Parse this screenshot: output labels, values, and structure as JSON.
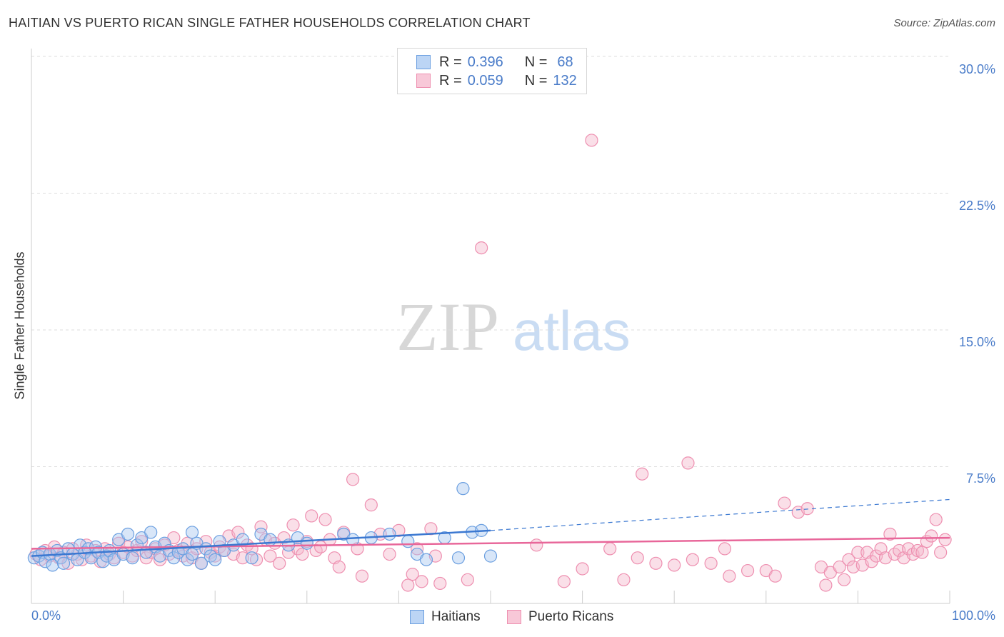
{
  "title": "HAITIAN VS PUERTO RICAN SINGLE FATHER HOUSEHOLDS CORRELATION CHART",
  "source": "Source: ZipAtlas.com",
  "watermark": {
    "zip": "ZIP",
    "atlas": "atlas"
  },
  "colors": {
    "blue": "#6b9fe0",
    "blue_fill": "#a8c8f0",
    "pink": "#ee8fb0",
    "pink_fill": "#f5b8cd",
    "blue_line": "#3b78d1",
    "pink_line": "#e8679a",
    "tick": "#4a7cc9"
  },
  "legend_top": {
    "rows": [
      {
        "r_label": "R =",
        "r_value": "0.396",
        "n_label": "N =",
        "n_value": "68"
      },
      {
        "r_label": "R =",
        "r_value": "0.059",
        "n_label": "N =",
        "n_value": "132"
      }
    ]
  },
  "legend_bottom": [
    "Haitians",
    "Puerto Ricans"
  ],
  "chart_data": {
    "type": "scatter",
    "title": "HAITIAN VS PUERTO RICAN SINGLE FATHER HOUSEHOLDS CORRELATION CHART",
    "xlabel": "",
    "ylabel": "Single Father Households",
    "xlim": [
      0,
      100
    ],
    "ylim": [
      0,
      30
    ],
    "x_tick_labels": [
      "0.0%",
      "100.0%"
    ],
    "y_ticks": [
      7.5,
      15.0,
      22.5,
      30.0
    ],
    "y_tick_labels": [
      "7.5%",
      "15.0%",
      "22.5%",
      "30.0%"
    ],
    "grid": true,
    "series": [
      {
        "name": "Haitians",
        "r": 0.396,
        "n": 68,
        "trend": {
          "x0": 0,
          "y0": 2.6,
          "x1": 50,
          "y1": 4.0,
          "dashed_to_x": 100,
          "dashed_to_y": 5.7
        },
        "points": [
          [
            0.3,
            2.5
          ],
          [
            0.8,
            2.6
          ],
          [
            1.2,
            2.8
          ],
          [
            1.5,
            2.3
          ],
          [
            2.0,
            2.7
          ],
          [
            2.3,
            2.1
          ],
          [
            2.8,
            2.9
          ],
          [
            3.2,
            2.5
          ],
          [
            3.5,
            2.2
          ],
          [
            4.0,
            3.0
          ],
          [
            4.5,
            2.7
          ],
          [
            5.0,
            2.4
          ],
          [
            5.3,
            3.2
          ],
          [
            5.8,
            2.8
          ],
          [
            6.2,
            3.0
          ],
          [
            6.5,
            2.5
          ],
          [
            7.0,
            3.1
          ],
          [
            7.3,
            2.8
          ],
          [
            7.8,
            2.3
          ],
          [
            8.2,
            2.6
          ],
          [
            8.5,
            2.9
          ],
          [
            9.0,
            2.4
          ],
          [
            9.5,
            3.5
          ],
          [
            10.0,
            2.7
          ],
          [
            10.5,
            3.8
          ],
          [
            11.0,
            2.5
          ],
          [
            11.5,
            3.2
          ],
          [
            12.0,
            3.6
          ],
          [
            12.5,
            2.8
          ],
          [
            13.0,
            3.9
          ],
          [
            13.5,
            3.1
          ],
          [
            14.0,
            2.6
          ],
          [
            14.5,
            3.3
          ],
          [
            15.0,
            2.9
          ],
          [
            15.5,
            2.5
          ],
          [
            16.0,
            2.8
          ],
          [
            16.5,
            3.0
          ],
          [
            17.0,
            2.4
          ],
          [
            17.5,
            2.7
          ],
          [
            18.0,
            3.3
          ],
          [
            18.5,
            2.2
          ],
          [
            19.0,
            3.0
          ],
          [
            19.5,
            2.6
          ],
          [
            20.0,
            2.4
          ],
          [
            20.5,
            3.4
          ],
          [
            21.0,
            2.9
          ],
          [
            22.0,
            3.2
          ],
          [
            23.0,
            3.5
          ],
          [
            24.0,
            2.5
          ],
          [
            25.0,
            3.8
          ],
          [
            26.0,
            3.5
          ],
          [
            28.0,
            3.2
          ],
          [
            29.0,
            3.6
          ],
          [
            30.0,
            3.3
          ],
          [
            34.0,
            3.8
          ],
          [
            35.0,
            3.5
          ],
          [
            37.0,
            3.6
          ],
          [
            39.0,
            3.8
          ],
          [
            41.0,
            3.4
          ],
          [
            42.0,
            2.7
          ],
          [
            43.0,
            2.4
          ],
          [
            45.0,
            3.6
          ],
          [
            46.5,
            2.5
          ],
          [
            47.0,
            6.3
          ],
          [
            48.0,
            3.9
          ],
          [
            49.0,
            4.0
          ],
          [
            50.0,
            2.6
          ],
          [
            17.5,
            3.9
          ]
        ]
      },
      {
        "name": "Puerto Ricans",
        "r": 0.059,
        "n": 132,
        "trend": {
          "x0": 0,
          "y0": 3.0,
          "x1": 100,
          "y1": 3.6
        },
        "points": [
          [
            0.5,
            2.7
          ],
          [
            1.0,
            2.4
          ],
          [
            1.5,
            2.9
          ],
          [
            2.0,
            2.6
          ],
          [
            2.5,
            3.1
          ],
          [
            3.0,
            2.5
          ],
          [
            3.5,
            2.8
          ],
          [
            4.0,
            2.2
          ],
          [
            4.5,
            3.0
          ],
          [
            5.0,
            2.7
          ],
          [
            5.5,
            2.4
          ],
          [
            6.0,
            3.2
          ],
          [
            6.5,
            2.6
          ],
          [
            7.0,
            2.9
          ],
          [
            7.5,
            2.3
          ],
          [
            8.0,
            3.0
          ],
          [
            8.5,
            2.7
          ],
          [
            9.0,
            2.5
          ],
          [
            9.5,
            3.3
          ],
          [
            10.0,
            2.8
          ],
          [
            10.5,
            3.1
          ],
          [
            11.0,
            2.6
          ],
          [
            11.5,
            2.9
          ],
          [
            12.0,
            3.4
          ],
          [
            12.5,
            2.5
          ],
          [
            13.0,
            2.8
          ],
          [
            13.5,
            3.0
          ],
          [
            14.0,
            2.4
          ],
          [
            14.5,
            3.2
          ],
          [
            15.0,
            2.7
          ],
          [
            15.5,
            3.6
          ],
          [
            16.0,
            2.9
          ],
          [
            16.5,
            2.6
          ],
          [
            17.0,
            3.3
          ],
          [
            17.5,
            2.5
          ],
          [
            18.0,
            3.0
          ],
          [
            18.5,
            2.2
          ],
          [
            19.0,
            3.4
          ],
          [
            19.5,
            2.8
          ],
          [
            20.0,
            2.6
          ],
          [
            20.5,
            3.1
          ],
          [
            21.0,
            2.9
          ],
          [
            21.5,
            3.7
          ],
          [
            22.0,
            2.7
          ],
          [
            22.5,
            3.9
          ],
          [
            23.0,
            2.5
          ],
          [
            23.5,
            3.2
          ],
          [
            24.0,
            3.0
          ],
          [
            24.5,
            2.4
          ],
          [
            25.0,
            4.2
          ],
          [
            25.5,
            3.5
          ],
          [
            26.0,
            2.6
          ],
          [
            26.5,
            3.3
          ],
          [
            27.0,
            2.2
          ],
          [
            27.5,
            3.6
          ],
          [
            28.0,
            2.8
          ],
          [
            28.5,
            4.3
          ],
          [
            29.0,
            3.0
          ],
          [
            29.5,
            2.7
          ],
          [
            30.0,
            3.4
          ],
          [
            30.5,
            4.8
          ],
          [
            31.0,
            2.9
          ],
          [
            31.5,
            3.1
          ],
          [
            32.0,
            4.6
          ],
          [
            32.5,
            3.5
          ],
          [
            33.0,
            2.5
          ],
          [
            33.5,
            2.0
          ],
          [
            34.0,
            3.9
          ],
          [
            35.0,
            6.8
          ],
          [
            35.5,
            3.0
          ],
          [
            36.0,
            1.5
          ],
          [
            37.0,
            5.4
          ],
          [
            38.0,
            3.8
          ],
          [
            39.0,
            2.7
          ],
          [
            40.0,
            4.0
          ],
          [
            41.5,
            1.6
          ],
          [
            42.0,
            3.0
          ],
          [
            42.5,
            1.2
          ],
          [
            43.5,
            4.1
          ],
          [
            44.0,
            2.6
          ],
          [
            47.5,
            1.3
          ],
          [
            55.0,
            3.2
          ],
          [
            63.0,
            3.0
          ],
          [
            66.0,
            2.5
          ],
          [
            68.0,
            2.2
          ],
          [
            72.0,
            2.4
          ],
          [
            74.0,
            2.2
          ],
          [
            75.5,
            3.0
          ],
          [
            78.0,
            1.8
          ],
          [
            80.0,
            1.8
          ],
          [
            81.0,
            1.5
          ],
          [
            82.0,
            5.5
          ],
          [
            83.5,
            5.0
          ],
          [
            84.5,
            5.2
          ],
          [
            86.0,
            2.0
          ],
          [
            87.0,
            1.7
          ],
          [
            88.0,
            2.0
          ],
          [
            88.5,
            1.3
          ],
          [
            89.0,
            2.4
          ],
          [
            89.5,
            2.0
          ],
          [
            90.0,
            2.8
          ],
          [
            90.5,
            2.1
          ],
          [
            91.0,
            2.8
          ],
          [
            91.5,
            2.3
          ],
          [
            92.0,
            2.6
          ],
          [
            92.5,
            3.0
          ],
          [
            93.0,
            2.5
          ],
          [
            93.5,
            3.8
          ],
          [
            94.0,
            2.7
          ],
          [
            94.5,
            2.9
          ],
          [
            95.0,
            2.5
          ],
          [
            95.5,
            3.0
          ],
          [
            96.0,
            2.7
          ],
          [
            96.5,
            2.9
          ],
          [
            97.0,
            2.8
          ],
          [
            97.5,
            3.4
          ],
          [
            98.0,
            3.7
          ],
          [
            98.5,
            4.6
          ],
          [
            99.0,
            2.8
          ],
          [
            99.5,
            3.5
          ],
          [
            49.0,
            19.5
          ],
          [
            61.0,
            25.4
          ],
          [
            66.5,
            7.1
          ],
          [
            71.5,
            7.7
          ],
          [
            44.5,
            1.1
          ],
          [
            41.0,
            1.0
          ],
          [
            58.0,
            1.2
          ],
          [
            76.0,
            1.5
          ],
          [
            86.5,
            1.0
          ],
          [
            60.0,
            1.9
          ],
          [
            64.5,
            1.3
          ],
          [
            70.0,
            2.1
          ]
        ]
      }
    ]
  }
}
